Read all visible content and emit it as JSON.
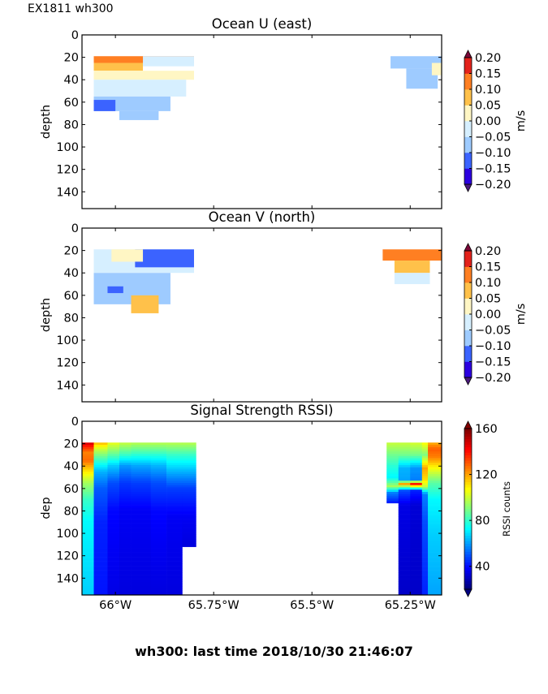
{
  "figure": {
    "header": "EX1811 wh300",
    "footer": "wh300: last time 2018/10/30 21:46:07",
    "background": "#ffffff"
  },
  "chart_data": [
    {
      "type": "heatmap",
      "title": "Ocean U (east)",
      "xlabel": "",
      "ylabel": "depth",
      "ylim": [
        155,
        0
      ],
      "xlim": [
        -66.085,
        -65.17
      ],
      "yticks": [
        0,
        20,
        40,
        60,
        80,
        100,
        120,
        140
      ],
      "ytick_labels": [
        "0",
        "20",
        "40",
        "60",
        "80",
        "100",
        "120",
        "140"
      ],
      "xticks": [
        -66.0,
        -65.75,
        -65.5,
        -65.25
      ],
      "xtick_labels": [],
      "colorbar": {
        "label": "m/s",
        "ticks": [
          "0.20",
          "0.15",
          "0.10",
          "0.05",
          "0.00",
          "−0.05",
          "−0.10",
          "−0.15",
          "−0.20"
        ],
        "levels": [
          -0.2,
          -0.15,
          -0.1,
          -0.05,
          0.0,
          0.05,
          0.1,
          0.15,
          0.2
        ],
        "colors": [
          "#2c00e0",
          "#3b63ff",
          "#9ecbff",
          "#d6efff",
          "#fff6c4",
          "#ffc14a",
          "#ff7f22",
          "#e3221b"
        ],
        "extend_colors": [
          "#4a1a7a",
          "#7a0838"
        ]
      },
      "regions": [
        {
          "x0": -66.055,
          "x1": -65.8,
          "y0": 19,
          "y1": 25,
          "value": 0.12
        },
        {
          "x0": -66.055,
          "x1": -65.93,
          "y0": 25,
          "y1": 32,
          "value": 0.07
        },
        {
          "x0": -65.93,
          "x1": -65.8,
          "y0": 19,
          "y1": 28,
          "value": -0.03
        },
        {
          "x0": -66.055,
          "x1": -65.8,
          "y0": 32,
          "y1": 40,
          "value": 0.02
        },
        {
          "x0": -66.055,
          "x1": -65.82,
          "y0": 40,
          "y1": 55,
          "value": -0.03
        },
        {
          "x0": -66.055,
          "x1": -65.86,
          "y0": 55,
          "y1": 68,
          "value": -0.08
        },
        {
          "x0": -66.055,
          "x1": -66.0,
          "y0": 58,
          "y1": 68,
          "value": -0.13
        },
        {
          "x0": -65.99,
          "x1": -65.89,
          "y0": 68,
          "y1": 76,
          "value": -0.07
        },
        {
          "x0": -65.3,
          "x1": -65.17,
          "y0": 19,
          "y1": 30,
          "value": -0.07
        },
        {
          "x0": -65.26,
          "x1": -65.18,
          "y0": 30,
          "y1": 48,
          "value": -0.07
        },
        {
          "x0": -65.195,
          "x1": -65.17,
          "y0": 25,
          "y1": 36,
          "value": 0.02
        }
      ]
    },
    {
      "type": "heatmap",
      "title": "Ocean V (north)",
      "xlabel": "",
      "ylabel": "depth",
      "ylim": [
        155,
        0
      ],
      "xlim": [
        -66.085,
        -65.17
      ],
      "yticks": [
        0,
        20,
        40,
        60,
        80,
        100,
        120,
        140
      ],
      "ytick_labels": [
        "0",
        "20",
        "40",
        "60",
        "80",
        "100",
        "120",
        "140"
      ],
      "xticks": [
        -66.0,
        -65.75,
        -65.5,
        -65.25
      ],
      "xtick_labels": [],
      "colorbar": {
        "label": "m/s",
        "ticks": [
          "0.20",
          "0.15",
          "0.10",
          "0.05",
          "0.00",
          "−0.05",
          "−0.10",
          "−0.15",
          "−0.20"
        ],
        "levels": [
          -0.2,
          -0.15,
          -0.1,
          -0.05,
          0.0,
          0.05,
          0.1,
          0.15,
          0.2
        ],
        "colors": [
          "#2c00e0",
          "#3b63ff",
          "#9ecbff",
          "#d6efff",
          "#fff6c4",
          "#ffc14a",
          "#ff7f22",
          "#e3221b"
        ],
        "extend_colors": [
          "#4a1a7a",
          "#7a0838"
        ]
      },
      "regions": [
        {
          "x0": -66.055,
          "x1": -65.8,
          "y0": 19,
          "y1": 40,
          "value": -0.03
        },
        {
          "x0": -65.95,
          "x1": -65.8,
          "y0": 19,
          "y1": 35,
          "value": -0.12
        },
        {
          "x0": -66.01,
          "x1": -65.93,
          "y0": 19,
          "y1": 30,
          "value": 0.02
        },
        {
          "x0": -66.055,
          "x1": -65.86,
          "y0": 40,
          "y1": 68,
          "value": -0.07
        },
        {
          "x0": -66.02,
          "x1": -65.98,
          "y0": 52,
          "y1": 58,
          "value": -0.13
        },
        {
          "x0": -65.96,
          "x1": -65.89,
          "y0": 60,
          "y1": 76,
          "value": 0.07
        },
        {
          "x0": -65.32,
          "x1": -65.17,
          "y0": 19,
          "y1": 29,
          "value": 0.12
        },
        {
          "x0": -65.29,
          "x1": -65.2,
          "y0": 29,
          "y1": 40,
          "value": 0.07
        },
        {
          "x0": -65.29,
          "x1": -65.2,
          "y0": 40,
          "y1": 50,
          "value": -0.02
        }
      ]
    },
    {
      "type": "heatmap",
      "title": "Signal Strength RSSI)",
      "xlabel": "",
      "ylabel": "dep",
      "ylim": [
        155,
        0
      ],
      "xlim": [
        -66.085,
        -65.17
      ],
      "yticks": [
        0,
        20,
        40,
        60,
        80,
        100,
        120,
        140
      ],
      "ytick_labels": [
        "0",
        "20",
        "40",
        "60",
        "80",
        "100",
        "120",
        "140"
      ],
      "xticks": [
        -66.0,
        -65.75,
        -65.5,
        -65.25
      ],
      "xtick_labels": [
        "66°W",
        "65.75°W",
        "65.5°W",
        "65.25°W"
      ],
      "colorbar": {
        "label": "RSSI counts",
        "ticks": [
          "160",
          "120",
          "80",
          "40"
        ],
        "tick_values": [
          160,
          120,
          80,
          40
        ],
        "vmin": 20,
        "vmax": 160,
        "colormap": "jet"
      },
      "columns": [
        {
          "x0": -66.085,
          "x1": -66.055,
          "top": 19,
          "bottom": 155,
          "profile": [
            [
              19,
              150
            ],
            [
              22,
              140
            ],
            [
              28,
              125
            ],
            [
              35,
              128
            ],
            [
              42,
              115
            ],
            [
              55,
              95
            ],
            [
              70,
              80
            ],
            [
              90,
              72
            ],
            [
              155,
              66
            ]
          ]
        },
        {
          "x0": -66.055,
          "x1": -66.02,
          "top": 19,
          "bottom": 155,
          "profile": [
            [
              19,
              118
            ],
            [
              25,
              100
            ],
            [
              35,
              80
            ],
            [
              45,
              62
            ],
            [
              60,
              50
            ],
            [
              90,
              42
            ],
            [
              155,
              40
            ]
          ]
        },
        {
          "x0": -66.02,
          "x1": -65.99,
          "top": 19,
          "bottom": 155,
          "profile": [
            [
              19,
              105
            ],
            [
              30,
              85
            ],
            [
              40,
              65
            ],
            [
              55,
              48
            ],
            [
              80,
              38
            ],
            [
              155,
              34
            ]
          ]
        },
        {
          "x0": -65.99,
          "x1": -65.96,
          "top": 19,
          "bottom": 155,
          "profile": [
            [
              19,
              100
            ],
            [
              30,
              80
            ],
            [
              40,
              58
            ],
            [
              55,
              45
            ],
            [
              80,
              36
            ],
            [
              155,
              33
            ]
          ]
        },
        {
          "x0": -65.96,
          "x1": -65.91,
          "top": 19,
          "bottom": 155,
          "profile": [
            [
              19,
              98
            ],
            [
              30,
              78
            ],
            [
              40,
              60
            ],
            [
              55,
              46
            ],
            [
              80,
              36
            ],
            [
              155,
              33
            ]
          ]
        },
        {
          "x0": -65.91,
          "x1": -65.87,
          "top": 19,
          "bottom": 155,
          "profile": [
            [
              19,
              98
            ],
            [
              30,
              78
            ],
            [
              40,
              62
            ],
            [
              55,
              48
            ],
            [
              80,
              38
            ],
            [
              155,
              33
            ]
          ]
        },
        {
          "x0": -65.87,
          "x1": -65.83,
          "top": 19,
          "bottom": 155,
          "profile": [
            [
              19,
              98
            ],
            [
              30,
              80
            ],
            [
              45,
              62
            ],
            [
              60,
              46
            ],
            [
              85,
              36
            ],
            [
              155,
              33
            ]
          ]
        },
        {
          "x0": -65.83,
          "x1": -65.795,
          "top": 19,
          "bottom": 112,
          "profile": [
            [
              19,
              98
            ],
            [
              30,
              80
            ],
            [
              45,
              62
            ],
            [
              60,
              46
            ],
            [
              85,
              36
            ],
            [
              112,
              33
            ]
          ]
        },
        {
          "x0": -65.31,
          "x1": -65.28,
          "top": 19,
          "bottom": 73,
          "profile": [
            [
              19,
              100
            ],
            [
              30,
              88
            ],
            [
              40,
              78
            ],
            [
              50,
              72
            ],
            [
              58,
              95
            ],
            [
              64,
              55
            ],
            [
              73,
              40
            ]
          ]
        },
        {
          "x0": -65.28,
          "x1": -65.25,
          "top": 19,
          "bottom": 155,
          "profile": [
            [
              19,
              100
            ],
            [
              30,
              88
            ],
            [
              42,
              62
            ],
            [
              52,
              60
            ],
            [
              56,
              120
            ],
            [
              62,
              48
            ],
            [
              75,
              34
            ],
            [
              155,
              30
            ]
          ]
        },
        {
          "x0": -65.25,
          "x1": -65.22,
          "top": 19,
          "bottom": 155,
          "profile": [
            [
              19,
              102
            ],
            [
              30,
              88
            ],
            [
              42,
              58
            ],
            [
              52,
              55
            ],
            [
              56,
              140
            ],
            [
              62,
              42
            ],
            [
              75,
              32
            ],
            [
              155,
              30
            ]
          ]
        },
        {
          "x0": -65.22,
          "x1": -65.205,
          "top": 19,
          "bottom": 155,
          "profile": [
            [
              19,
              108
            ],
            [
              30,
              90
            ],
            [
              42,
              120
            ],
            [
              52,
              112
            ],
            [
              58,
              100
            ],
            [
              65,
              55
            ],
            [
              90,
              48
            ],
            [
              155,
              42
            ]
          ]
        },
        {
          "x0": -65.205,
          "x1": -65.17,
          "top": 19,
          "bottom": 155,
          "profile": [
            [
              19,
              118
            ],
            [
              25,
              130
            ],
            [
              32,
              125
            ],
            [
              40,
              110
            ],
            [
              55,
              85
            ],
            [
              70,
              72
            ],
            [
              100,
              66
            ],
            [
              155,
              60
            ]
          ]
        }
      ]
    }
  ]
}
